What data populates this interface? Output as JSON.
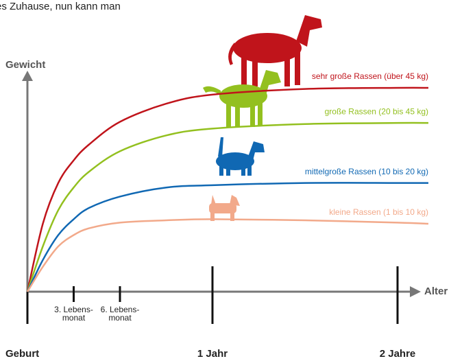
{
  "intro": "es Zuhause, nun kann man",
  "chart_data": {
    "type": "line",
    "xlabel": "Alter",
    "ylabel": "Gewicht",
    "x": [
      0,
      1,
      2,
      3,
      4,
      6,
      9,
      12,
      18,
      24,
      26
    ],
    "xlim": [
      0,
      26
    ],
    "ylim": [
      0,
      100
    ],
    "xticks": [
      {
        "value": 0,
        "label": "Geburt"
      },
      {
        "value": 3,
        "label": "3. Lebens-\nmonat"
      },
      {
        "value": 6,
        "label": "6. Lebens-\nmonat"
      },
      {
        "value": 12,
        "label": "1 Jahr"
      },
      {
        "value": 24,
        "label": "2 Jahre"
      }
    ],
    "series": [
      {
        "name": "sehr große Rassen (über 45 kg)",
        "color": "#c0141b",
        "values": [
          0,
          30,
          48,
          58,
          65,
          75,
          83,
          87,
          89.5,
          90,
          90
        ]
      },
      {
        "name": "große Rassen (20 bis 45 kg)",
        "color": "#93c01f",
        "values": [
          0,
          20,
          36,
          46,
          53,
          62,
          69,
          72,
          74,
          74.5,
          74.5
        ]
      },
      {
        "name": "mittelgroße Rassen (10 bis 20 kg)",
        "color": "#1068b3",
        "values": [
          0,
          14,
          25,
          32,
          37,
          42,
          46,
          47,
          48,
          48,
          48
        ]
      },
      {
        "name": "kleine Rassen (1 bis 10 kg)",
        "color": "#f2a98a",
        "values": [
          0,
          11,
          20,
          25,
          28,
          30.5,
          31.5,
          32,
          31.5,
          30.5,
          30
        ]
      }
    ]
  }
}
